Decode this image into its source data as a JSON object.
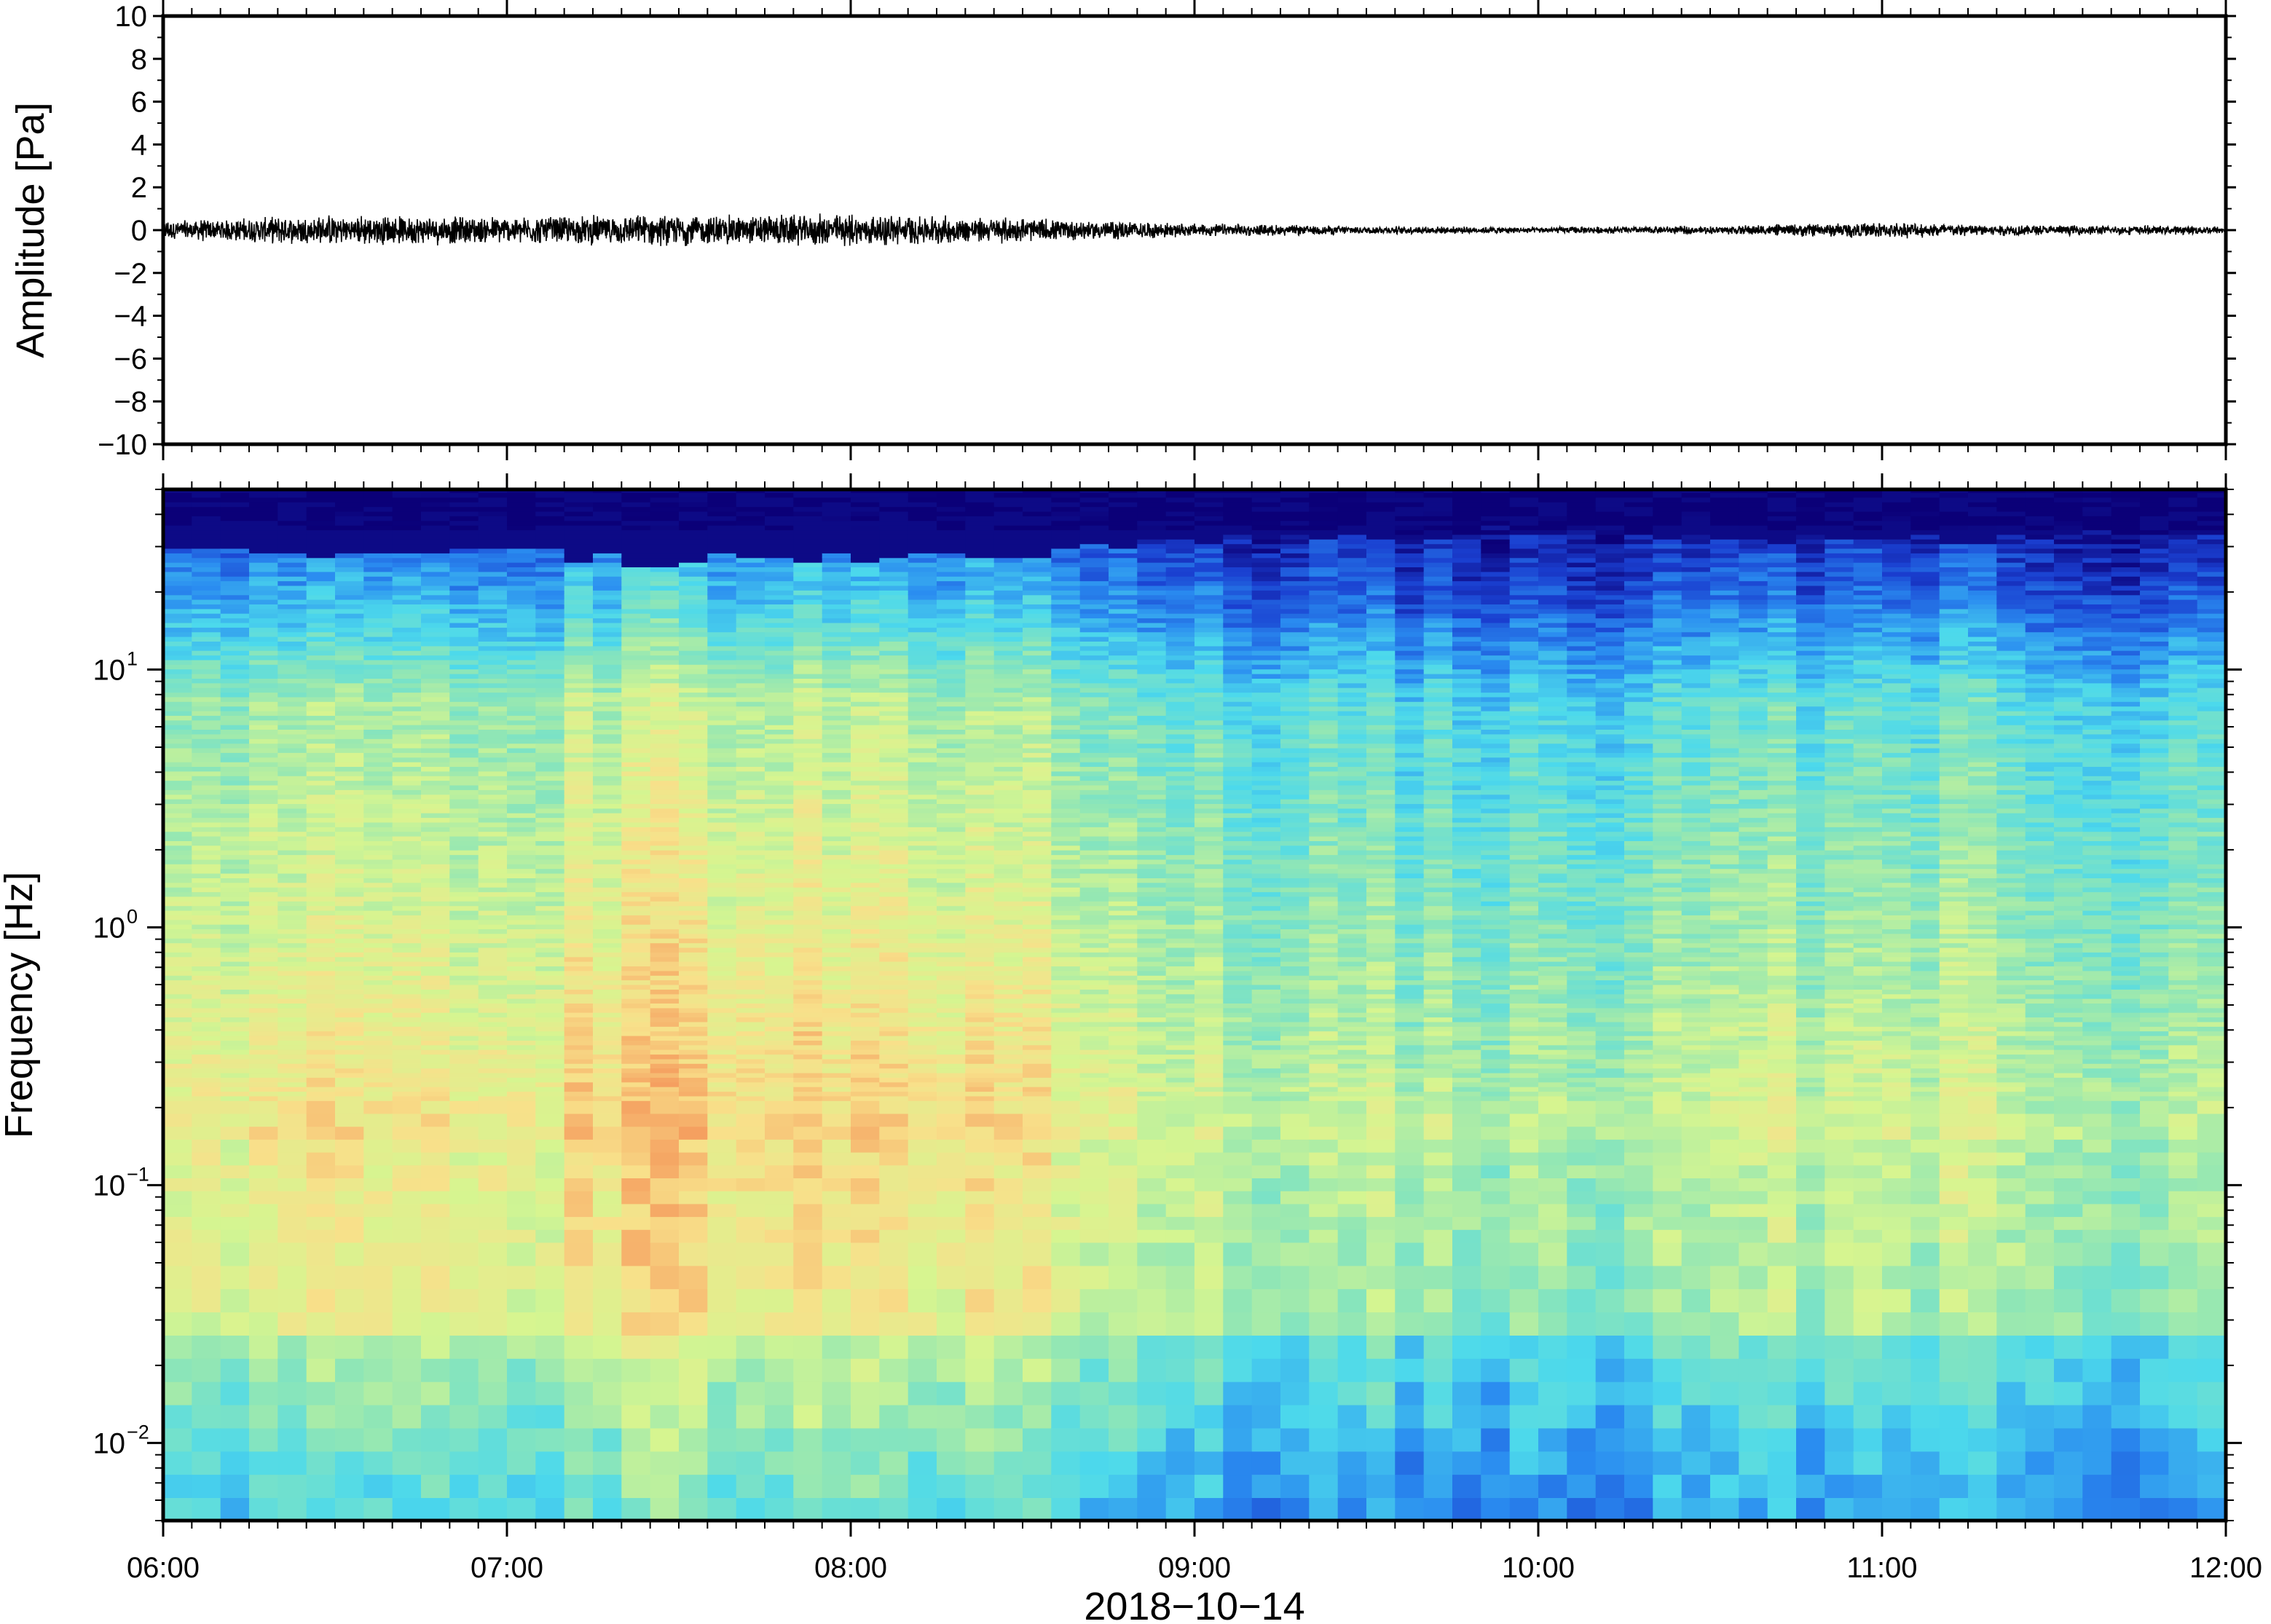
{
  "chart_data": [
    {
      "type": "line",
      "panel": "waveform",
      "ylabel": "Amplitude [Pa]",
      "ylim": [
        -10,
        10
      ],
      "yticks": [
        {
          "value": 10,
          "label": "10"
        },
        {
          "value": 8,
          "label": "8"
        },
        {
          "value": 6,
          "label": "6"
        },
        {
          "value": 4,
          "label": "4"
        },
        {
          "value": 2,
          "label": "2"
        },
        {
          "value": 0,
          "label": "0"
        },
        {
          "value": -2,
          "label": "−2"
        },
        {
          "value": -4,
          "label": "−4"
        },
        {
          "value": -6,
          "label": "−6"
        },
        {
          "value": -8,
          "label": "−8"
        },
        {
          "value": -10,
          "label": "−10"
        }
      ],
      "x": [
        "06:00",
        "06:30",
        "07:00",
        "07:30",
        "08:00",
        "08:30",
        "09:00",
        "09:30",
        "10:00",
        "10:30",
        "11:00",
        "11:30",
        "12:00"
      ],
      "envelope_pa": [
        0.35,
        0.55,
        0.5,
        0.55,
        0.6,
        0.45,
        0.25,
        0.15,
        0.12,
        0.15,
        0.3,
        0.18,
        0.15
      ],
      "line_color": "#000000"
    },
    {
      "type": "heatmap",
      "panel": "spectrogram",
      "ylabel": "Frequency [Hz]",
      "yscale": "log",
      "ylim": [
        0.005,
        50
      ],
      "yticks": [
        {
          "value": 10,
          "base": "10",
          "exp": "1"
        },
        {
          "value": 1,
          "base": "10",
          "exp": "0"
        },
        {
          "value": 0.1,
          "base": "10",
          "exp": "−1"
        },
        {
          "value": 0.01,
          "base": "10",
          "exp": "−2"
        }
      ],
      "colormap": [
        "#0b0078",
        "#1a3fd0",
        "#2a8cf0",
        "#4cd9ec",
        "#8fe6b6",
        "#d6f590",
        "#f8e08a",
        "#f5a060",
        "#e8603c"
      ],
      "x": [
        "06:00",
        "06:30",
        "07:00",
        "07:30",
        "08:00",
        "08:30",
        "09:00",
        "09:30",
        "10:00",
        "10:30",
        "11:00",
        "11:30",
        "12:00"
      ],
      "activity": [
        0.5,
        0.7,
        0.65,
        0.8,
        0.75,
        0.65,
        0.45,
        0.4,
        0.35,
        0.4,
        0.5,
        0.4,
        0.35
      ],
      "xlabel": "2018−10−14",
      "xlim": [
        "06:00",
        "12:00"
      ],
      "xticks": [
        "06:00",
        "07:00",
        "08:00",
        "09:00",
        "10:00",
        "11:00",
        "12:00"
      ]
    }
  ]
}
